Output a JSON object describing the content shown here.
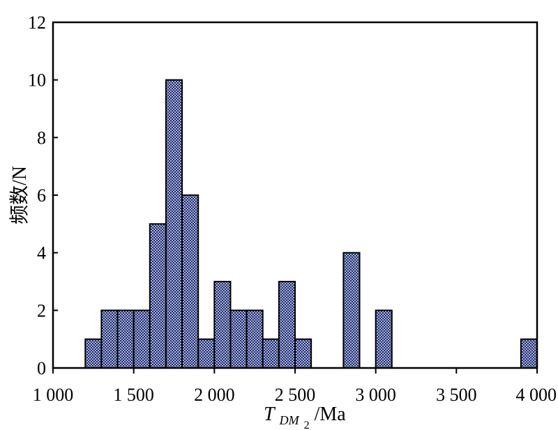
{
  "chart_data": {
    "type": "bar",
    "title": "",
    "xlabel_main": "T",
    "xlabel_sub1": "DM",
    "xlabel_sub2": "2",
    "xlabel_unit": "/Ma",
    "ylabel": "频数/N",
    "xlim": [
      1000,
      4000
    ],
    "ylim": [
      0,
      12
    ],
    "bin_width": 100,
    "x_ticks": [
      1000,
      1500,
      2000,
      2500,
      3000,
      3500,
      4000
    ],
    "x_tick_labels": [
      "1 000",
      "1 500",
      "2 000",
      "2 500",
      "3 000",
      "3 500",
      "4 000"
    ],
    "y_ticks": [
      0,
      2,
      4,
      6,
      8,
      10,
      12
    ],
    "y_tick_labels": [
      "0",
      "2",
      "4",
      "6",
      "8",
      "10",
      "12"
    ],
    "bins": [
      {
        "start": 1200,
        "end": 1300,
        "value": 1
      },
      {
        "start": 1300,
        "end": 1400,
        "value": 2
      },
      {
        "start": 1400,
        "end": 1500,
        "value": 2
      },
      {
        "start": 1500,
        "end": 1600,
        "value": 2
      },
      {
        "start": 1600,
        "end": 1700,
        "value": 5
      },
      {
        "start": 1700,
        "end": 1800,
        "value": 10
      },
      {
        "start": 1800,
        "end": 1900,
        "value": 6
      },
      {
        "start": 1900,
        "end": 2000,
        "value": 1
      },
      {
        "start": 2000,
        "end": 2100,
        "value": 3
      },
      {
        "start": 2100,
        "end": 2200,
        "value": 2
      },
      {
        "start": 2200,
        "end": 2300,
        "value": 2
      },
      {
        "start": 2300,
        "end": 2400,
        "value": 1
      },
      {
        "start": 2400,
        "end": 2500,
        "value": 3
      },
      {
        "start": 2500,
        "end": 2600,
        "value": 1
      },
      {
        "start": 2800,
        "end": 2900,
        "value": 4
      },
      {
        "start": 3000,
        "end": 3100,
        "value": 2
      },
      {
        "start": 3900,
        "end": 4000,
        "value": 1
      }
    ],
    "grid": false,
    "legend": "none",
    "bar_fill_color": "#aab4d6",
    "bar_pattern_color": "#1f2a6e",
    "bar_edge_color": "#000000"
  }
}
